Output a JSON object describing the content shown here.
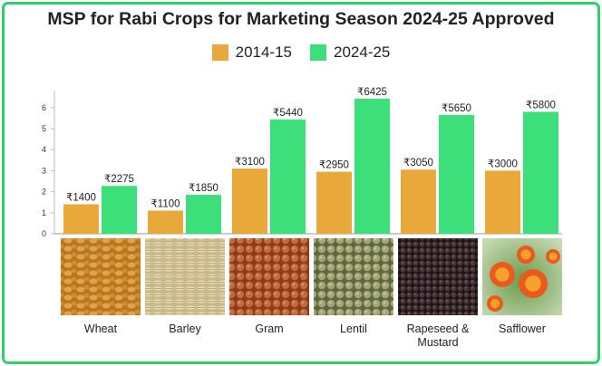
{
  "colors": {
    "series_2014": "#e9a83a",
    "series_2024": "#3cdf7a",
    "frame": "#2fd06a"
  },
  "chart_data": {
    "type": "bar",
    "title": "MSP for Rabi Crops for Marketing Season 2024-25 Approved",
    "categories": [
      "Wheat",
      "Barley",
      "Gram",
      "Lentil",
      "Rapeseed & Mustard",
      "Safflower"
    ],
    "series": [
      {
        "name": "2014-15",
        "values": [
          1400,
          1100,
          3100,
          2950,
          3050,
          3000
        ],
        "labels": [
          "₹1400",
          "₹1100",
          "₹3100",
          "₹2950",
          "₹3050",
          "₹3000"
        ]
      },
      {
        "name": "2024-25",
        "values": [
          2275,
          1850,
          5440,
          6425,
          5650,
          5800
        ],
        "labels": [
          "₹2275",
          "₹1850",
          "₹5440",
          "₹6425",
          "₹5650",
          "₹5800"
        ]
      }
    ],
    "yticks": [
      "0",
      "1",
      "2",
      "3",
      "4",
      "5",
      "6"
    ],
    "ylim": [
      0,
      6800
    ],
    "legend": "top",
    "grid": false
  }
}
